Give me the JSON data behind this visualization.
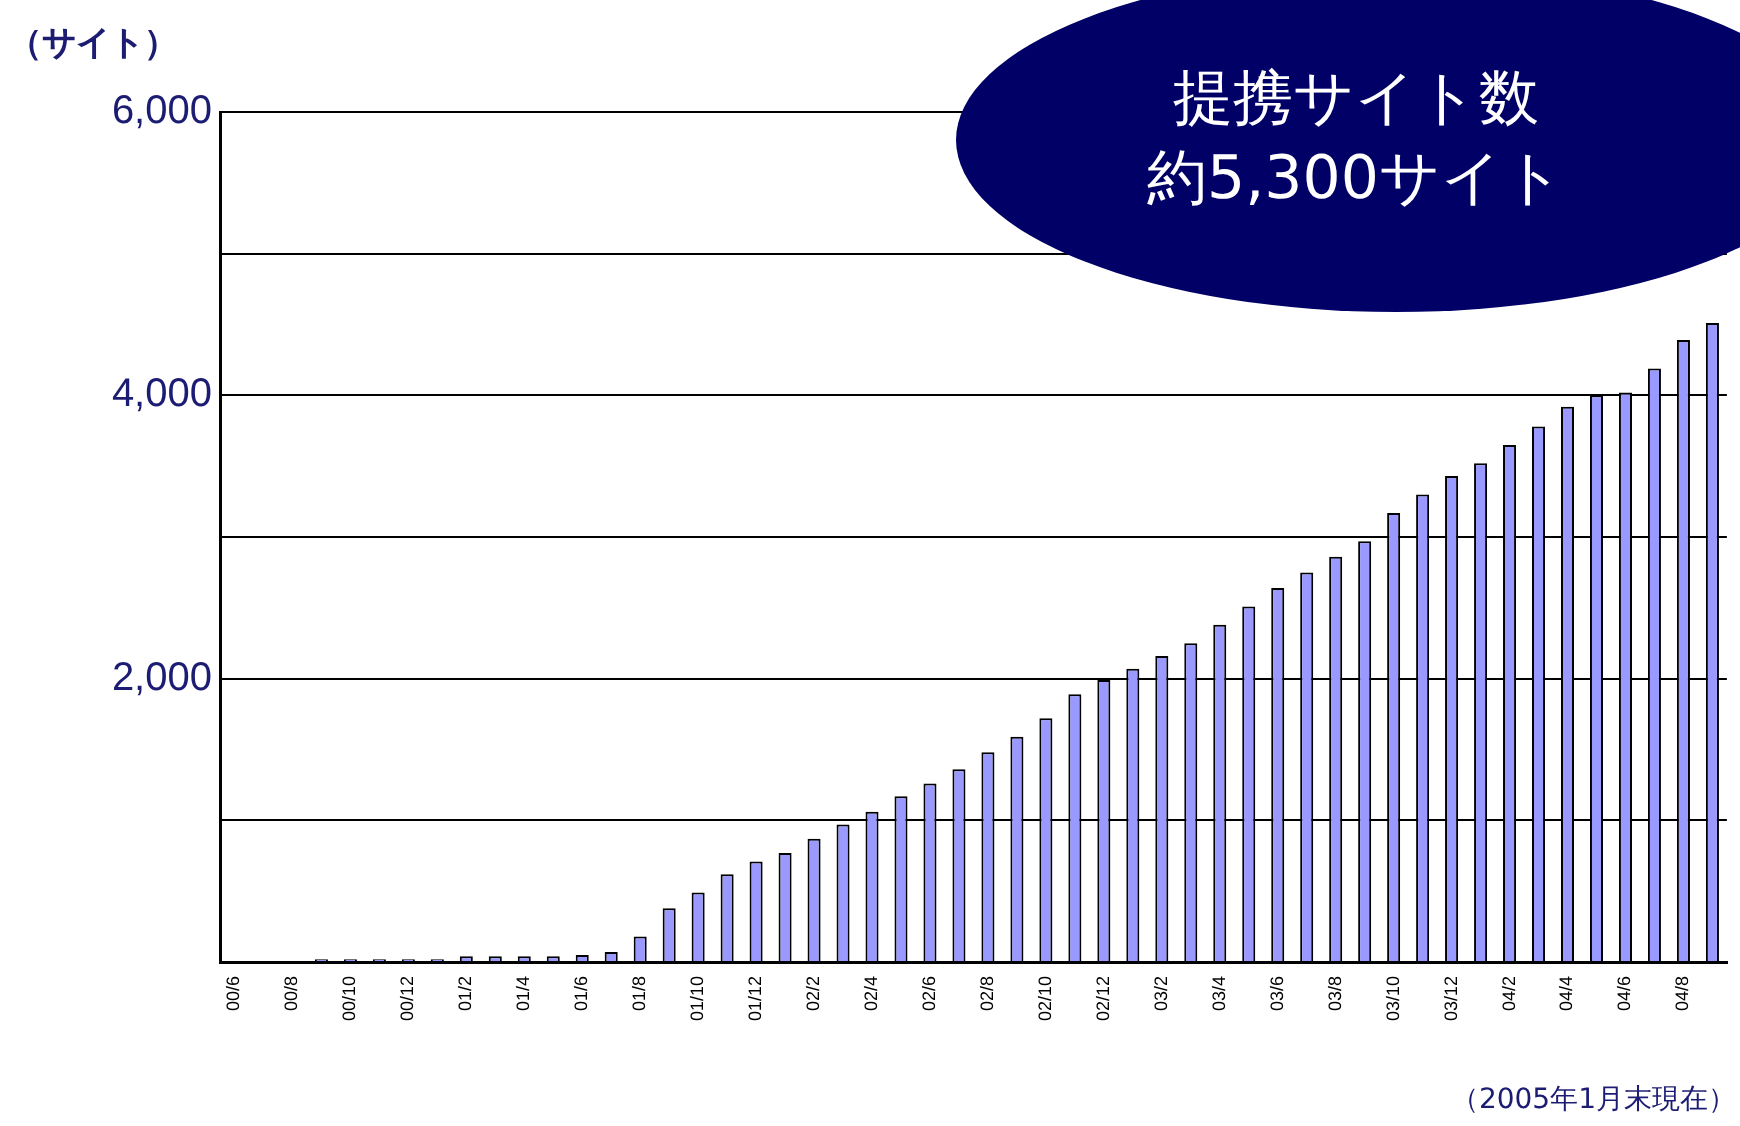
{
  "chart_data": {
    "type": "bar",
    "ylabel": "（サイト）",
    "categories": [
      "00/6",
      null,
      "00/8",
      null,
      "00/10",
      null,
      "00/12",
      null,
      "01/2",
      null,
      "01/4",
      null,
      "01/6",
      null,
      "01/8",
      null,
      "01/10",
      null,
      "01/12",
      null,
      "02/2",
      null,
      "02/4",
      null,
      "02/6",
      null,
      "02/8",
      null,
      "02/10",
      null,
      "02/12",
      null,
      "03/2",
      null,
      "03/4",
      null,
      "03/6",
      null,
      "03/8",
      null,
      "03/10",
      null,
      "03/12",
      null,
      "04/2",
      null,
      "04/4",
      null,
      "04/6",
      null,
      "04/8",
      null
    ],
    "values": [
      null,
      null,
      null,
      20,
      20,
      20,
      20,
      20,
      40,
      40,
      40,
      40,
      50,
      70,
      180,
      380,
      490,
      620,
      710,
      770,
      870,
      970,
      1060,
      1170,
      1260,
      1360,
      1480,
      1590,
      1720,
      1890,
      1990,
      2070,
      2160,
      2250,
      2380,
      2510,
      2640,
      2750,
      2860,
      2970,
      3170,
      3300,
      3430,
      3520,
      3650,
      3780,
      3920,
      4000,
      4020,
      4190,
      4390,
      4510
    ],
    "color": "#9999ff",
    "ylim": [
      0,
      6000
    ],
    "yticks": [
      {
        "value": 0,
        "label": null
      },
      {
        "value": 1000,
        "label": null
      },
      {
        "value": 2000,
        "label": "2,000"
      },
      {
        "value": 3000,
        "label": null
      },
      {
        "value": 4000,
        "label": "4,000"
      },
      {
        "value": 5000,
        "label": null
      },
      {
        "value": 6000,
        "label": "6,000"
      }
    ],
    "grid": "y",
    "annotations": [
      "提携サイト数",
      "約5,300サイト",
      "（2005年1月末現在）"
    ]
  }
}
